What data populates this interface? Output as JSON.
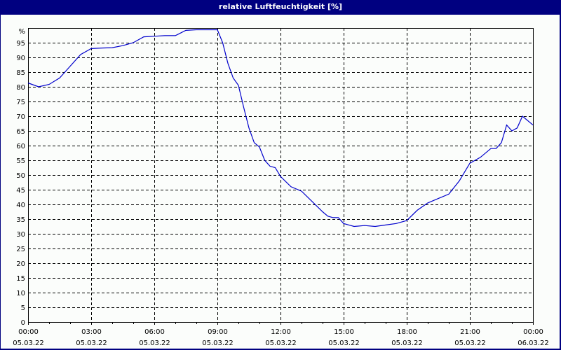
{
  "window": {
    "title": "relative Luftfeuchtigkeit [%]"
  },
  "chart_data": {
    "type": "line",
    "title": "relative Luftfeuchtigkeit [%]",
    "xlabel": "",
    "ylabel": "%",
    "ylim": [
      0,
      100
    ],
    "yticks": [
      0,
      5,
      10,
      15,
      20,
      25,
      30,
      35,
      40,
      45,
      50,
      55,
      60,
      65,
      70,
      75,
      80,
      85,
      90,
      95
    ],
    "y_unit_label": "%",
    "xticks": [
      {
        "time": "00:00",
        "date": "05.03.22"
      },
      {
        "time": "03:00",
        "date": "05.03.22"
      },
      {
        "time": "06:00",
        "date": "05.03.22"
      },
      {
        "time": "09:00",
        "date": "05.03.22"
      },
      {
        "time": "12:00",
        "date": "05.03.22"
      },
      {
        "time": "15:00",
        "date": "05.03.22"
      },
      {
        "time": "18:00",
        "date": "05.03.22"
      },
      {
        "time": "21:00",
        "date": "05.03.22"
      },
      {
        "time": "00:00",
        "date": "06.03.22"
      }
    ],
    "grid": true,
    "line_color": "#0000cc",
    "series": [
      {
        "name": "relative Luftfeuchtigkeit",
        "x_hours": [
          0,
          0.5,
          1,
          1.5,
          2,
          2.5,
          3,
          3.5,
          4,
          4.5,
          5,
          5.5,
          6,
          6.5,
          7,
          7.5,
          8,
          8.5,
          9,
          9.25,
          9.5,
          9.75,
          10,
          10.25,
          10.5,
          10.75,
          11,
          11.25,
          11.5,
          11.75,
          12,
          12.5,
          13,
          13.5,
          14,
          14.25,
          14.5,
          14.75,
          15,
          15.25,
          15.5,
          16,
          16.5,
          17,
          17.5,
          18,
          18.5,
          19,
          19.5,
          20,
          20.5,
          21,
          21.5,
          22,
          22.25,
          22.5,
          22.75,
          23,
          23.25,
          23.5,
          24
        ],
        "values": [
          81.3,
          80,
          80.8,
          83,
          87,
          91,
          93,
          93.2,
          93.3,
          94,
          95,
          97,
          97.2,
          97.4,
          97.4,
          99.2,
          99.4,
          99.4,
          99.4,
          95,
          88,
          83,
          80.5,
          73,
          66,
          61,
          59.5,
          55,
          53,
          52.5,
          49.5,
          46,
          44.5,
          41,
          37.5,
          36,
          35.5,
          35.5,
          33.5,
          33,
          32.5,
          32.8,
          32.5,
          33,
          33.5,
          34.5,
          38,
          40.5,
          42,
          43.5,
          48,
          54,
          56,
          59,
          59,
          61,
          67,
          65,
          66,
          70,
          67
        ]
      }
    ]
  }
}
